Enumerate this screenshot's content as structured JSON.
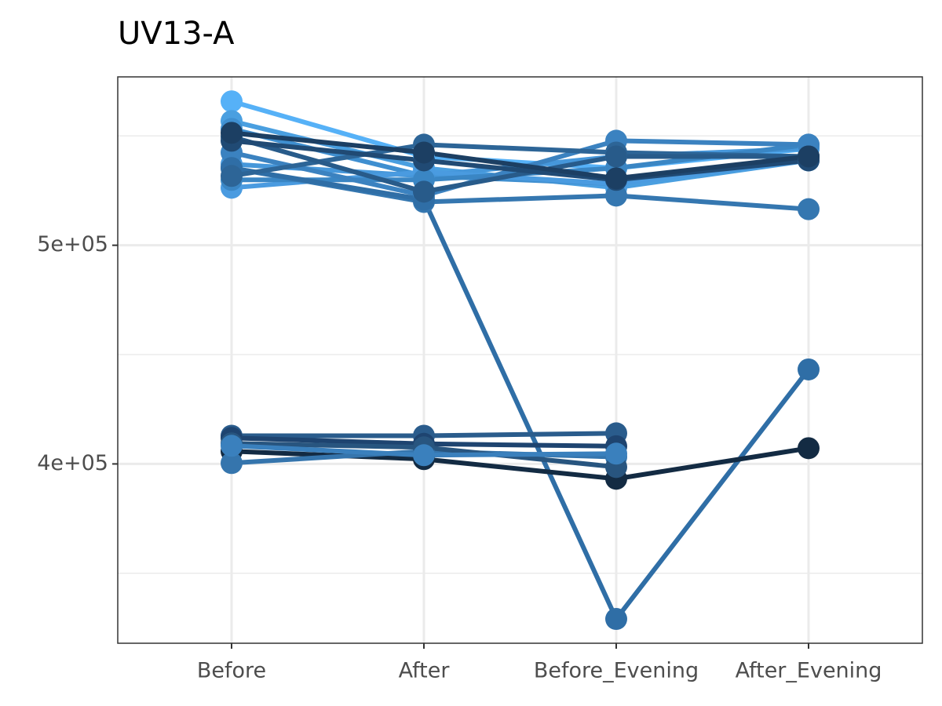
{
  "chart_data": {
    "type": "line",
    "title": "UV13-A",
    "categories": [
      "Before",
      "After",
      "Before_Evening",
      "After_Evening"
    ],
    "ylim": [
      318000,
      577000
    ],
    "yticks": [
      {
        "value": 400000,
        "label": "4e+05"
      },
      {
        "value": 500000,
        "label": "5e+05"
      }
    ],
    "minor_yticks": [
      350000,
      450000,
      550000
    ],
    "grid": true,
    "series": [
      {
        "color": "#56b1f7",
        "values": [
          565800,
          540600,
          535300,
          544200
        ]
      },
      {
        "color": "#4a9fe0",
        "values": [
          556800,
          535300,
          526300,
          538800
        ]
      },
      {
        "color": "#3f8fd0",
        "values": [
          553200,
          531700,
          528100,
          540600
        ]
      },
      {
        "color": "#4697da",
        "values": [
          537100,
          531700,
          540600,
          544200
        ]
      },
      {
        "color": "#4a9be0",
        "values": [
          526300,
          533500,
          528100,
          538800
        ]
      },
      {
        "color": "#3a86c4",
        "values": [
          529900,
          529900,
          535300,
          546000
        ]
      },
      {
        "color": "#3b82c0",
        "values": [
          542400,
          522700,
          547800,
          546000
        ]
      },
      {
        "color": "#3577b0",
        "values": [
          535300,
          519800,
          522700,
          516500
        ]
      },
      {
        "color": "#2f6ea6",
        "values": [
          535300,
          520900,
          329100,
          443200
        ]
      },
      {
        "color": "#2d6597",
        "values": [
          531700,
          546000,
          542400,
          540600
        ]
      },
      {
        "color": "#285b8a",
        "values": [
          549600,
          524500,
          540600,
          540600
        ]
      },
      {
        "color": "#204a74",
        "values": [
          547800,
          538800,
          529900,
          538800
        ]
      },
      {
        "color": "#1c3f63",
        "values": [
          551400,
          542400,
          530600,
          540600
        ]
      },
      {
        "color": "#2a5c8c",
        "values": [
          412900,
          412900,
          414000,
          null
        ]
      },
      {
        "color": "#1e4470",
        "values": [
          411900,
          409200,
          408100,
          null
        ]
      },
      {
        "color": "#132b43",
        "values": [
          405800,
          402200,
          393200,
          407200
        ]
      },
      {
        "color": "#3575ad",
        "values": [
          400400,
          405800,
          403200,
          null
        ]
      },
      {
        "color": "#28557f",
        "values": [
          409400,
          407600,
          398600,
          null
        ]
      },
      {
        "color": "#3a80bd",
        "values": [
          408300,
          404000,
          404700,
          null
        ]
      }
    ]
  }
}
